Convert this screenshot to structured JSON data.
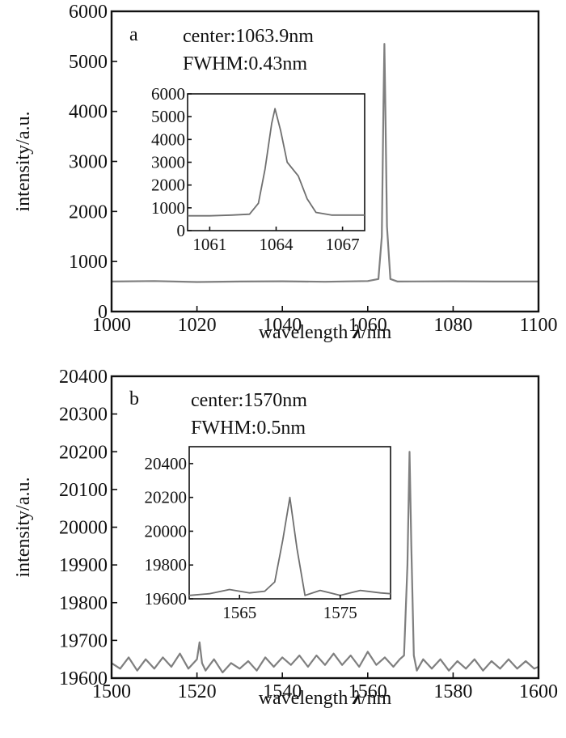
{
  "chart_data": [
    {
      "id": "a",
      "type": "line",
      "panel_label": "a",
      "annotations": [
        "center:1063.9nm",
        "FWHM:0.43nm"
      ],
      "xlabel_text": "wavelength ",
      "xlabel_symbol": "λ",
      "xlabel_unit": "/nm",
      "ylabel": "intensity/a.u.",
      "xlim": [
        1000,
        1100
      ],
      "ylim": [
        0,
        6000
      ],
      "xticks": [
        1000,
        1020,
        1040,
        1060,
        1080,
        1100
      ],
      "yticks": [
        0,
        1000,
        2000,
        3000,
        4000,
        5000,
        6000
      ],
      "series": [
        {
          "color": "#7f7f7f",
          "x": [
            1000,
            1010,
            1020,
            1030,
            1040,
            1050,
            1060,
            1062.5,
            1063.3,
            1063.7,
            1063.9,
            1064.1,
            1064.5,
            1065.3,
            1067,
            1080,
            1090,
            1100
          ],
          "y": [
            600,
            610,
            590,
            600,
            605,
            595,
            610,
            650,
            1500,
            4200,
            5350,
            4300,
            1700,
            650,
            600,
            605,
            600,
            600
          ]
        }
      ],
      "inset": {
        "xlim": [
          1060,
          1068
        ],
        "ylim": [
          0,
          6000
        ],
        "xticks": [
          1061,
          1064,
          1067
        ],
        "yticks": [
          0,
          1000,
          2000,
          3000,
          4000,
          5000,
          6000
        ],
        "ytick_labels": [
          "0",
          "1000",
          "2000",
          "3000",
          "4000",
          "5000",
          "6000"
        ],
        "x": [
          1060,
          1061,
          1062,
          1062.8,
          1063.2,
          1063.5,
          1063.8,
          1063.95,
          1064.2,
          1064.5,
          1065,
          1065.4,
          1065.8,
          1066.5,
          1068
        ],
        "y": [
          650,
          650,
          680,
          720,
          1200,
          2700,
          4700,
          5350,
          4400,
          3000,
          2400,
          1400,
          800,
          680,
          680
        ]
      }
    },
    {
      "id": "b",
      "type": "line",
      "panel_label": "b",
      "annotations": [
        "center:1570nm",
        "FWHM:0.5nm"
      ],
      "xlabel_text": "wavelength ",
      "xlabel_symbol": "λ",
      "xlabel_unit": "/nm",
      "ylabel": "intensity/a.u.",
      "xlim": [
        1500,
        1600
      ],
      "ylim": [
        19600,
        20400
      ],
      "xticks": [
        1500,
        1520,
        1540,
        1560,
        1580,
        1600
      ],
      "yticks": [
        19600,
        19700,
        19800,
        19900,
        20000,
        20100,
        20200,
        20300,
        20400
      ],
      "series": [
        {
          "color": "#7f7f7f",
          "x": [
            1500,
            1502,
            1504,
            1506,
            1508,
            1510,
            1512,
            1514,
            1516,
            1518,
            1520,
            1520.6,
            1521.2,
            1522,
            1524,
            1526,
            1528,
            1530,
            1532,
            1534,
            1536,
            1538,
            1540,
            1542,
            1544,
            1546,
            1548,
            1550,
            1552,
            1554,
            1556,
            1558,
            1560,
            1562,
            1564,
            1566,
            1567.5,
            1568.5,
            1569.3,
            1569.8,
            1570.2,
            1570.8,
            1571.5,
            1573,
            1575,
            1577,
            1579,
            1581,
            1583,
            1585,
            1587,
            1589,
            1591,
            1593,
            1595,
            1597,
            1599,
            1600
          ],
          "y": [
            19640,
            19625,
            19655,
            19620,
            19650,
            19625,
            19655,
            19630,
            19665,
            19625,
            19650,
            19695,
            19640,
            19620,
            19650,
            19615,
            19640,
            19625,
            19645,
            19620,
            19655,
            19630,
            19655,
            19635,
            19660,
            19630,
            19660,
            19635,
            19665,
            19635,
            19660,
            19630,
            19670,
            19635,
            19655,
            19630,
            19650,
            19660,
            19900,
            20200,
            19950,
            19660,
            19620,
            19650,
            19625,
            19650,
            19620,
            19645,
            19625,
            19650,
            19620,
            19645,
            19625,
            19650,
            19625,
            19645,
            19625,
            19630
          ]
        }
      ],
      "inset": {
        "xlim": [
          1560,
          1580
        ],
        "ylim": [
          19600,
          20500
        ],
        "xticks": [
          1565,
          1575
        ],
        "yticks": [
          19600,
          19800,
          20000,
          20200,
          20400
        ],
        "ytick_labels": [
          "19600",
          "19800",
          "20000",
          "20200",
          "20400"
        ],
        "x": [
          1560,
          1562,
          1564,
          1566,
          1567.5,
          1568.5,
          1569.3,
          1570,
          1570.7,
          1571.5,
          1573,
          1575,
          1577,
          1579,
          1580
        ],
        "y": [
          19620,
          19630,
          19655,
          19635,
          19645,
          19700,
          19950,
          20200,
          19900,
          19620,
          19650,
          19620,
          19650,
          19635,
          19630
        ]
      }
    }
  ]
}
